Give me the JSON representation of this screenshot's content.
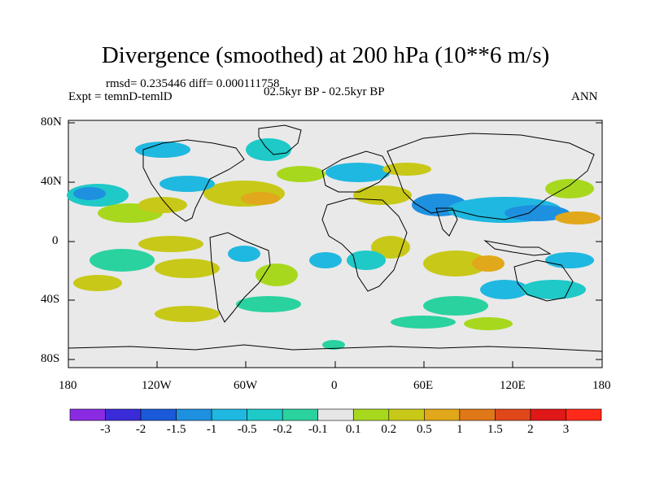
{
  "title": "Divergence (smoothed) at 200 hPa (10**6 m/s)",
  "stats": "rmsd= 0.235446 diff= 0.000111758",
  "expt": "Expt = temnD-temlD",
  "period": "02.5kyr BP - 02.5kyr BP",
  "season": "ANN",
  "lat_ticks": [
    "80N",
    "40N",
    "0",
    "40S",
    "80S"
  ],
  "lon_ticks": [
    "180",
    "120W",
    "60W",
    "0",
    "60E",
    "120E",
    "180"
  ],
  "colorbar": {
    "labels": [
      "-3",
      "-2",
      "-1.5",
      "-1",
      "-0.5",
      "-0.2",
      "-0.1",
      "0.1",
      "0.2",
      "0.5",
      "1",
      "1.5",
      "2",
      "3"
    ],
    "colors": [
      "#8a2be2",
      "#3a2bd9",
      "#1a5ad8",
      "#1e90e0",
      "#1fb8e0",
      "#1ec9c8",
      "#2ad2a0",
      "#e6e6e6",
      "#a8d81e",
      "#c8c818",
      "#e0a81a",
      "#e07818",
      "#e0481a",
      "#e01818",
      "#ff2a1a"
    ]
  }
}
